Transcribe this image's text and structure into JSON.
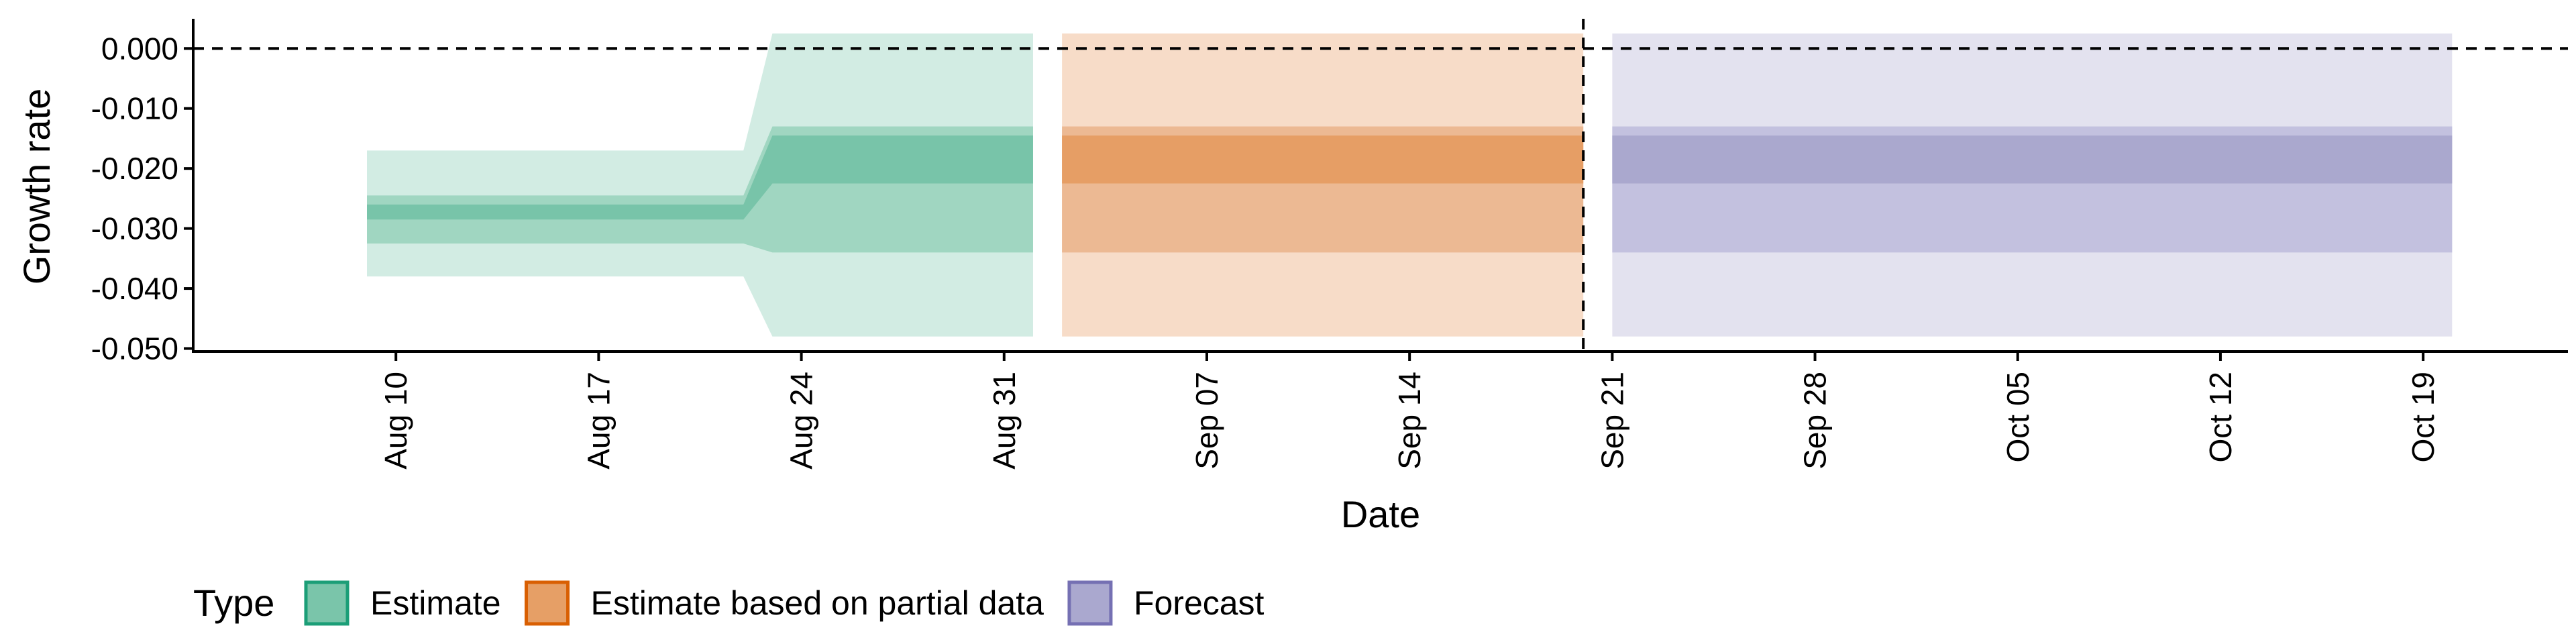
{
  "chart_data": {
    "type": "area",
    "xlabel": "Date",
    "ylabel": "Growth rate",
    "x_range": [
      "2020-08-03",
      "2020-10-24"
    ],
    "ylim": [
      -0.0505,
      0.0045
    ],
    "y_ticks": [
      0.0,
      -0.01,
      -0.02,
      -0.03,
      -0.04,
      -0.05
    ],
    "y_tick_labels": [
      "0.000",
      "-0.010",
      "-0.020",
      "-0.030",
      "-0.040",
      "-0.050"
    ],
    "x_ticks": [
      "2020-08-10",
      "2020-08-17",
      "2020-08-24",
      "2020-08-31",
      "2020-09-07",
      "2020-09-14",
      "2020-09-21",
      "2020-09-28",
      "2020-10-05",
      "2020-10-12",
      "2020-10-19"
    ],
    "x_tick_labels": [
      "Aug 10",
      "Aug 17",
      "Aug 24",
      "Aug 31",
      "Sep 07",
      "Sep 14",
      "Sep 21",
      "Sep 28",
      "Oct 05",
      "Oct 12",
      "Oct 19"
    ],
    "hline": 0.0,
    "vline": "2020-09-20",
    "legend": {
      "title": "Type",
      "position": "bottom-left",
      "items": [
        {
          "label": "Estimate",
          "fill": "#7ac5aa",
          "border": "#1b9e77"
        },
        {
          "label": "Estimate based on partial data",
          "fill": "#e69f66",
          "border": "#d95f02"
        },
        {
          "label": "Forecast",
          "fill": "#aaa8cf",
          "border": "#7570b3"
        }
      ]
    },
    "series": [
      {
        "name": "Estimate",
        "colors": {
          "outer": "#d2ece3",
          "middle": "#a0d6c1",
          "inner": "#78c4a9"
        },
        "x": [
          "2020-08-09",
          "2020-08-22",
          "2020-08-23",
          "2020-09-01"
        ],
        "lower_90": [
          -0.038,
          -0.038,
          -0.048,
          -0.048
        ],
        "upper_90": [
          -0.017,
          -0.017,
          0.0025,
          0.0025
        ],
        "lower_50": [
          -0.0325,
          -0.0325,
          -0.034,
          -0.034
        ],
        "upper_50": [
          -0.0245,
          -0.0245,
          -0.013,
          -0.013
        ],
        "lower_20": [
          -0.0285,
          -0.0285,
          -0.0225,
          -0.0225
        ],
        "upper_20": [
          -0.026,
          -0.026,
          -0.0145,
          -0.0145
        ]
      },
      {
        "name": "Estimate based on partial data",
        "colors": {
          "outer": "#f7dcc8",
          "middle": "#ecb993",
          "inner": "#e69e65"
        },
        "x": [
          "2020-09-02",
          "2020-09-20"
        ],
        "lower_90": [
          -0.048,
          -0.048
        ],
        "upper_90": [
          0.0025,
          0.0025
        ],
        "lower_50": [
          -0.034,
          -0.034
        ],
        "upper_50": [
          -0.013,
          -0.013
        ],
        "lower_20": [
          -0.0225,
          -0.0225
        ],
        "upper_20": [
          -0.0145,
          -0.0145
        ]
      },
      {
        "name": "Forecast",
        "colors": {
          "outer": "#e3e2ef",
          "middle": "#c3c1df",
          "inner": "#aaa8ce"
        },
        "x": [
          "2020-09-21",
          "2020-10-20"
        ],
        "lower_90": [
          -0.048,
          -0.048
        ],
        "upper_90": [
          0.0025,
          0.0025
        ],
        "lower_50": [
          -0.034,
          -0.034
        ],
        "upper_50": [
          -0.013,
          -0.013
        ],
        "lower_20": [
          -0.0225,
          -0.0225
        ],
        "upper_20": [
          -0.0145,
          -0.0145
        ]
      }
    ]
  }
}
